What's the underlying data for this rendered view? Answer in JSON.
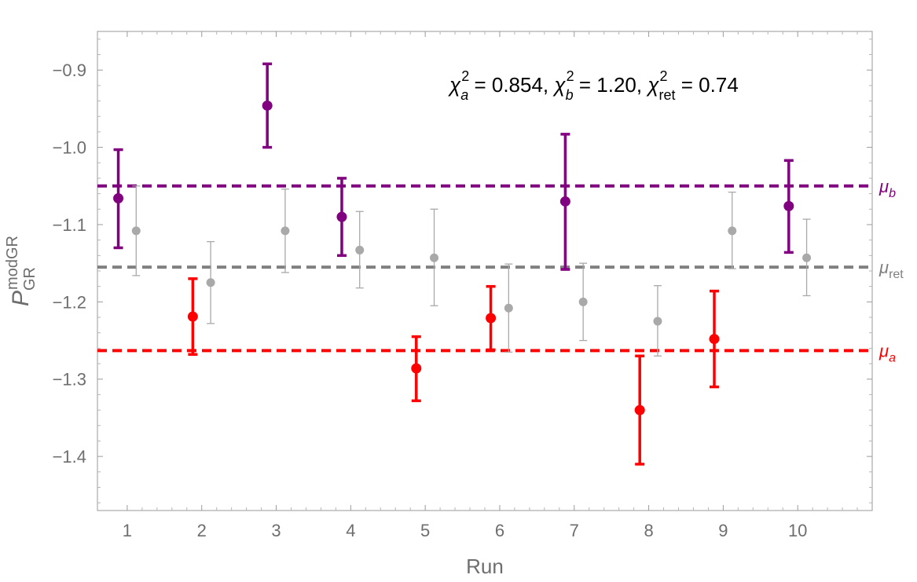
{
  "chart_data": {
    "type": "scatter",
    "xlabel": "Run",
    "ylabel": {
      "main": "P",
      "sup": "modGR",
      "sub": "GR"
    },
    "xlim": [
      0.6,
      11.0
    ],
    "ylim": [
      -1.47,
      -0.85
    ],
    "xticks": [
      1,
      2,
      3,
      4,
      5,
      6,
      7,
      8,
      9,
      10
    ],
    "yticks": [
      -1.4,
      -1.3,
      -1.2,
      -1.1,
      -1.0,
      -0.9
    ],
    "ytick_labels": [
      "−1.4",
      "−1.3",
      "−1.2",
      "−1.1",
      "−1.0",
      "−0.9"
    ],
    "annotation": {
      "chi": "χ",
      "sup": "2",
      "sub_a": "a",
      "val_a": " = 0.854, ",
      "sub_b": "b",
      "val_b": " = 1.20, ",
      "sub_ret": "ret",
      "val_ret": " = 0.74"
    },
    "reference_lines": [
      {
        "name": "μ",
        "sub": "b",
        "value": -1.05,
        "color": "#800080"
      },
      {
        "name": "μ",
        "sub": "ret",
        "value": -1.155,
        "color": "#808080"
      },
      {
        "name": "μ",
        "sub": "a",
        "value": -1.263,
        "color": "#ff0000"
      }
    ],
    "series": [
      {
        "color": "#800080",
        "points": [
          {
            "run": 1,
            "x": 0.88,
            "y": -1.066,
            "lo": -1.13,
            "hi": -1.003
          },
          {
            "run": 3,
            "x": 2.88,
            "y": -0.946,
            "lo": -1.0,
            "hi": -0.892
          },
          {
            "run": 4,
            "x": 3.88,
            "y": -1.09,
            "lo": -1.14,
            "hi": -1.04
          },
          {
            "run": 7,
            "x": 6.88,
            "y": -1.07,
            "lo": -1.158,
            "hi": -0.983
          },
          {
            "run": 10,
            "x": 9.88,
            "y": -1.076,
            "lo": -1.136,
            "hi": -1.017
          }
        ]
      },
      {
        "color": "#ff0000",
        "points": [
          {
            "run": 2,
            "x": 1.88,
            "y": -1.219,
            "lo": -1.268,
            "hi": -1.17
          },
          {
            "run": 5,
            "x": 4.88,
            "y": -1.286,
            "lo": -1.328,
            "hi": -1.245
          },
          {
            "run": 6,
            "x": 5.88,
            "y": -1.221,
            "lo": -1.262,
            "hi": -1.18
          },
          {
            "run": 8,
            "x": 7.88,
            "y": -1.34,
            "lo": -1.41,
            "hi": -1.27
          },
          {
            "run": 9,
            "x": 8.88,
            "y": -1.248,
            "lo": -1.31,
            "hi": -1.186
          }
        ]
      },
      {
        "color": "#a9a9a9",
        "points": [
          {
            "run": 1,
            "x": 1.12,
            "y": -1.108,
            "lo": -1.166,
            "hi": -1.05
          },
          {
            "run": 2,
            "x": 2.12,
            "y": -1.175,
            "lo": -1.228,
            "hi": -1.122
          },
          {
            "run": 3,
            "x": 3.12,
            "y": -1.108,
            "lo": -1.162,
            "hi": -1.054
          },
          {
            "run": 4,
            "x": 4.12,
            "y": -1.133,
            "lo": -1.182,
            "hi": -1.083
          },
          {
            "run": 5,
            "x": 5.12,
            "y": -1.143,
            "lo": -1.205,
            "hi": -1.08
          },
          {
            "run": 6,
            "x": 6.12,
            "y": -1.208,
            "lo": -1.265,
            "hi": -1.151
          },
          {
            "run": 7,
            "x": 7.12,
            "y": -1.2,
            "lo": -1.25,
            "hi": -1.15
          },
          {
            "run": 8,
            "x": 8.12,
            "y": -1.225,
            "lo": -1.27,
            "hi": -1.179
          },
          {
            "run": 9,
            "x": 9.12,
            "y": -1.108,
            "lo": -1.157,
            "hi": -1.058
          },
          {
            "run": 10,
            "x": 10.12,
            "y": -1.143,
            "lo": -1.192,
            "hi": -1.093
          }
        ]
      }
    ]
  }
}
